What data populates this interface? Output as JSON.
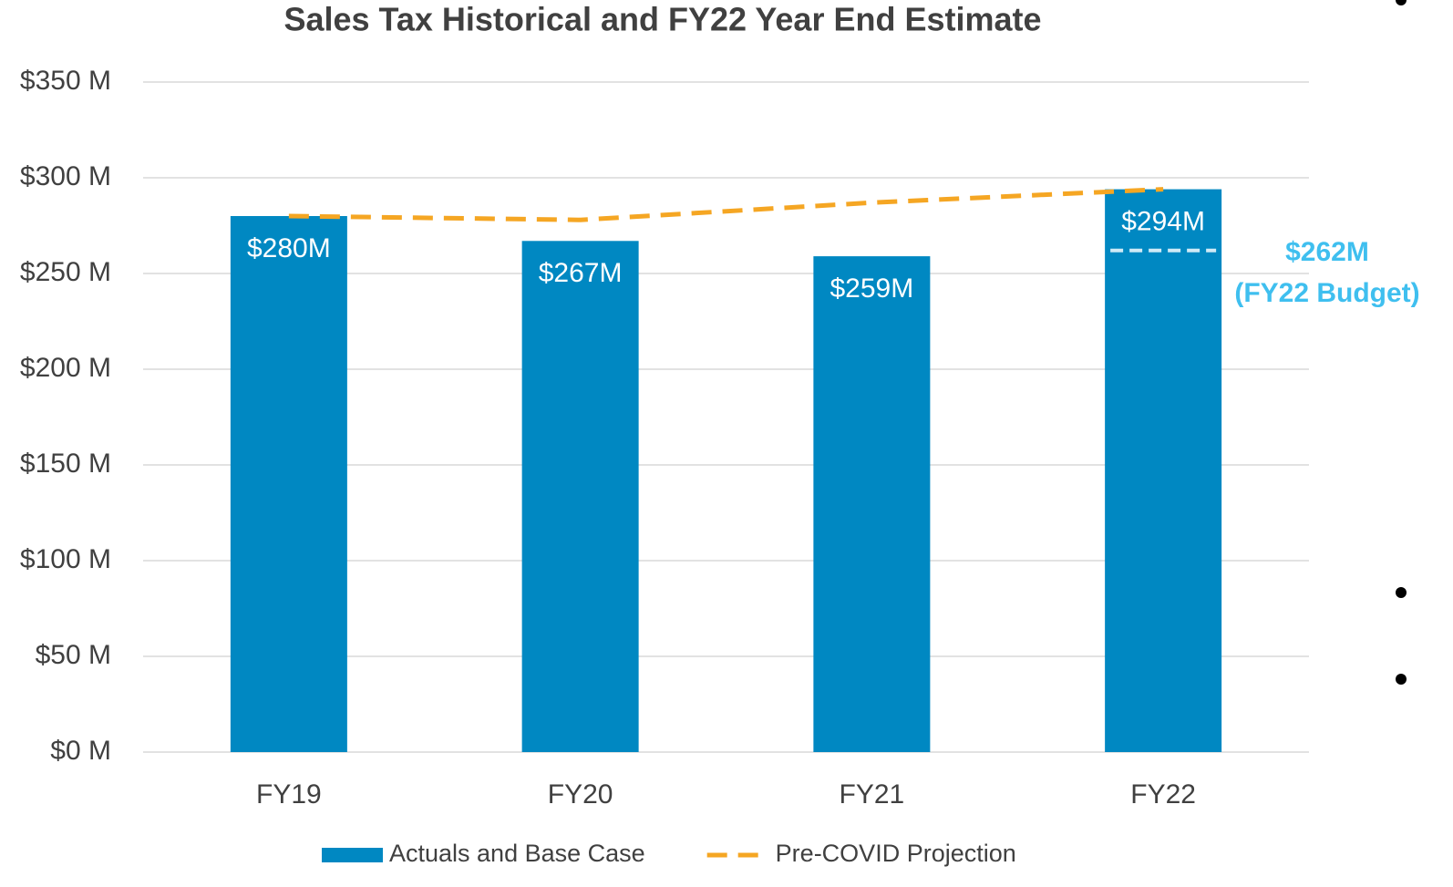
{
  "chart_data": {
    "type": "bar",
    "title": "Sales Tax Historical and FY22 Year End Estimate",
    "categories": [
      "FY19",
      "FY20",
      "FY21",
      "FY22"
    ],
    "series": [
      {
        "name": "Actuals and Base Case",
        "type": "bar",
        "color": "#0088c2",
        "values": [
          280,
          267,
          259,
          294
        ],
        "value_labels": [
          "$280M",
          "$267M",
          "$259M",
          "$294M"
        ]
      },
      {
        "name": "Pre-COVID Projection",
        "type": "line",
        "dashed": true,
        "color": "#f5a623",
        "values": [
          280,
          278,
          287,
          294
        ]
      }
    ],
    "annotations": [
      {
        "value": 262,
        "label": "$262M",
        "text": "(FY22 Budget)",
        "category": 3,
        "color": "#3fbfef"
      }
    ],
    "ylim": [
      0,
      350
    ],
    "yticks": [
      {
        "value": 0,
        "label": "$0 M"
      },
      {
        "value": 50,
        "label": "$50 M"
      },
      {
        "value": 100,
        "label": "$100 M"
      },
      {
        "value": 150,
        "label": "$150 M"
      },
      {
        "value": 200,
        "label": "$200 M"
      },
      {
        "value": 250,
        "label": "$250 M"
      },
      {
        "value": 300,
        "label": "$300 M"
      },
      {
        "value": 350,
        "label": "$350 M"
      }
    ],
    "grid": true,
    "legend": "bottom"
  }
}
